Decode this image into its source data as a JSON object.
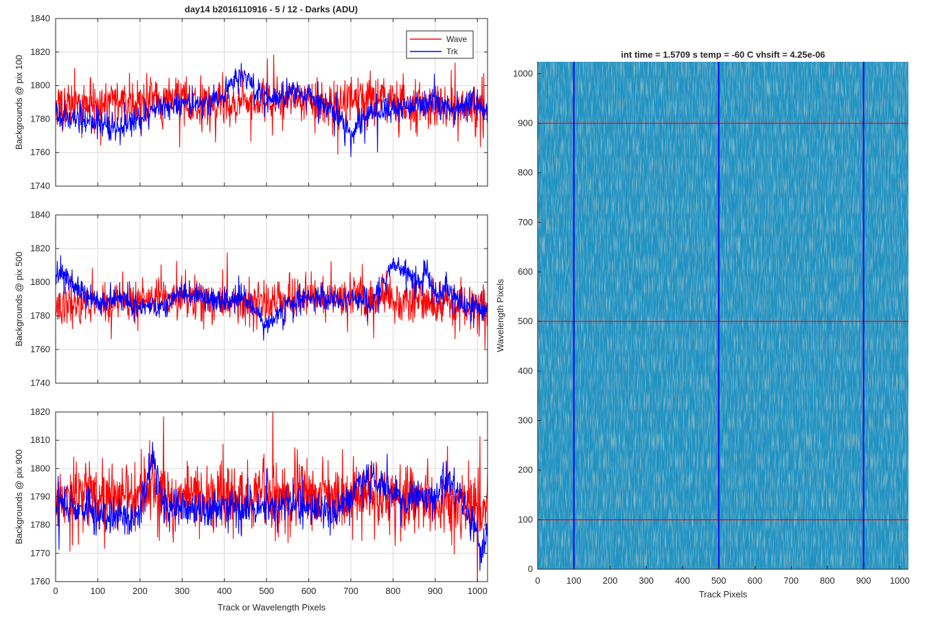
{
  "figure": {
    "suptitle": "day14 b2016110916 - 5 / 12 - Darks (ADU)",
    "colors": {
      "wave": "#ff0000",
      "trk": "#0000ff",
      "grid": "#d9d9d9",
      "axis": "#262626"
    }
  },
  "chart_data": [
    {
      "type": "line",
      "ylabel": "Backgrounds @ pix 100",
      "xlim": [
        0,
        1024
      ],
      "ylim": [
        1740,
        1840
      ],
      "yticks": [
        1740,
        1760,
        1780,
        1800,
        1820,
        1840
      ],
      "xticks": [
        0,
        100,
        200,
        300,
        400,
        500,
        600,
        700,
        800,
        900,
        1000
      ],
      "legend": {
        "placement": "top-right",
        "entries": [
          "Wave",
          "Trk"
        ]
      },
      "series": [
        {
          "name": "Wave",
          "color": "#ff0000",
          "noise": 9,
          "seed": 11,
          "x": [
            0,
            50,
            100,
            150,
            200,
            250,
            300,
            350,
            400,
            450,
            500,
            550,
            600,
            650,
            700,
            750,
            800,
            850,
            900,
            950,
            1024
          ],
          "y": [
            1787,
            1789,
            1790,
            1791,
            1791,
            1792,
            1791,
            1789,
            1790,
            1791,
            1790,
            1791,
            1790,
            1787,
            1790,
            1791,
            1790,
            1788,
            1788,
            1786,
            1787
          ]
        },
        {
          "name": "Trk",
          "color": "#0000ff",
          "noise": 5,
          "seed": 23,
          "x": [
            0,
            30,
            60,
            100,
            150,
            200,
            250,
            300,
            350,
            400,
            440,
            480,
            520,
            560,
            600,
            650,
            700,
            750,
            800,
            850,
            900,
            950,
            1000,
            1024
          ],
          "y": [
            1785,
            1781,
            1777,
            1778,
            1775,
            1780,
            1789,
            1788,
            1789,
            1793,
            1808,
            1797,
            1792,
            1796,
            1794,
            1787,
            1773,
            1784,
            1786,
            1789,
            1790,
            1787,
            1792,
            1782
          ]
        }
      ]
    },
    {
      "type": "line",
      "ylabel": "Backgrounds @ pix 500",
      "xlim": [
        0,
        1024
      ],
      "ylim": [
        1740,
        1840
      ],
      "yticks": [
        1740,
        1760,
        1780,
        1800,
        1820,
        1840
      ],
      "xticks": [
        0,
        100,
        200,
        300,
        400,
        500,
        600,
        700,
        800,
        900,
        1000
      ],
      "series": [
        {
          "name": "Wave",
          "color": "#ff0000",
          "noise": 8,
          "seed": 37,
          "x": [
            0,
            50,
            100,
            200,
            300,
            400,
            500,
            600,
            700,
            800,
            900,
            1000,
            1024
          ],
          "y": [
            1785,
            1787,
            1788,
            1789,
            1790,
            1789,
            1789,
            1790,
            1791,
            1789,
            1786,
            1785,
            1785
          ]
        },
        {
          "name": "Trk",
          "color": "#0000ff",
          "noise": 4.5,
          "seed": 41,
          "x": [
            0,
            10,
            30,
            60,
            100,
            150,
            200,
            250,
            300,
            350,
            400,
            450,
            500,
            550,
            600,
            650,
            700,
            750,
            780,
            800,
            830,
            860,
            880,
            900,
            930,
            960,
            1000,
            1024
          ],
          "y": [
            1798,
            1808,
            1802,
            1795,
            1787,
            1791,
            1785,
            1786,
            1794,
            1792,
            1786,
            1790,
            1775,
            1787,
            1793,
            1789,
            1790,
            1788,
            1800,
            1809,
            1807,
            1799,
            1806,
            1792,
            1797,
            1786,
            1786,
            1781
          ]
        }
      ]
    },
    {
      "type": "line",
      "ylabel": "Backgrounds @ pix 900",
      "xlabel": "Track or Wavelength Pixels",
      "xlim": [
        0,
        1024
      ],
      "ylim": [
        1760,
        1820
      ],
      "yticks": [
        1760,
        1770,
        1780,
        1790,
        1800,
        1810,
        1820
      ],
      "xticks": [
        0,
        100,
        200,
        300,
        400,
        500,
        600,
        700,
        800,
        900,
        1000
      ],
      "series": [
        {
          "name": "Wave",
          "color": "#ff0000",
          "noise": 8,
          "seed": 53,
          "x": [
            0,
            100,
            200,
            300,
            400,
            500,
            600,
            700,
            800,
            900,
            1000,
            1024
          ],
          "y": [
            1790,
            1791,
            1791,
            1790,
            1790,
            1790,
            1790,
            1790,
            1789,
            1789,
            1786,
            1787
          ]
        },
        {
          "name": "Trk",
          "color": "#0000ff",
          "noise": 4,
          "seed": 67,
          "x": [
            0,
            50,
            100,
            150,
            200,
            230,
            260,
            300,
            350,
            400,
            450,
            500,
            550,
            600,
            650,
            700,
            720,
            750,
            780,
            800,
            830,
            860,
            900,
            930,
            960,
            990,
            1010,
            1024
          ],
          "y": [
            1788,
            1785,
            1783,
            1782,
            1784,
            1803,
            1786,
            1787,
            1786,
            1787,
            1786,
            1786,
            1788,
            1786,
            1784,
            1789,
            1796,
            1797,
            1793,
            1792,
            1788,
            1791,
            1790,
            1798,
            1788,
            1782,
            1770,
            1777
          ]
        }
      ]
    },
    {
      "type": "heatmap",
      "title": "int time = 1.5709 s    temp = -60 C    vhsift = 4.25e-06",
      "xlabel": "Track Pixels",
      "ylabel": "Wavelength Pixels",
      "xlim": [
        0,
        1024
      ],
      "ylim": [
        0,
        1024
      ],
      "xticks": [
        0,
        100,
        200,
        300,
        400,
        500,
        600,
        700,
        800,
        900,
        1000
      ],
      "yticks": [
        0,
        100,
        200,
        300,
        400,
        500,
        600,
        700,
        800,
        900,
        1000
      ],
      "colormap": {
        "base": "#1f9ac3",
        "high": "#8fd08c",
        "low": "#2a78c8"
      },
      "vertical_markers": {
        "color": "#0000ff",
        "x": [
          100,
          500,
          900
        ]
      },
      "horizontal_markers": {
        "color": "#ff0000",
        "y": [
          100,
          500,
          900
        ]
      }
    }
  ]
}
